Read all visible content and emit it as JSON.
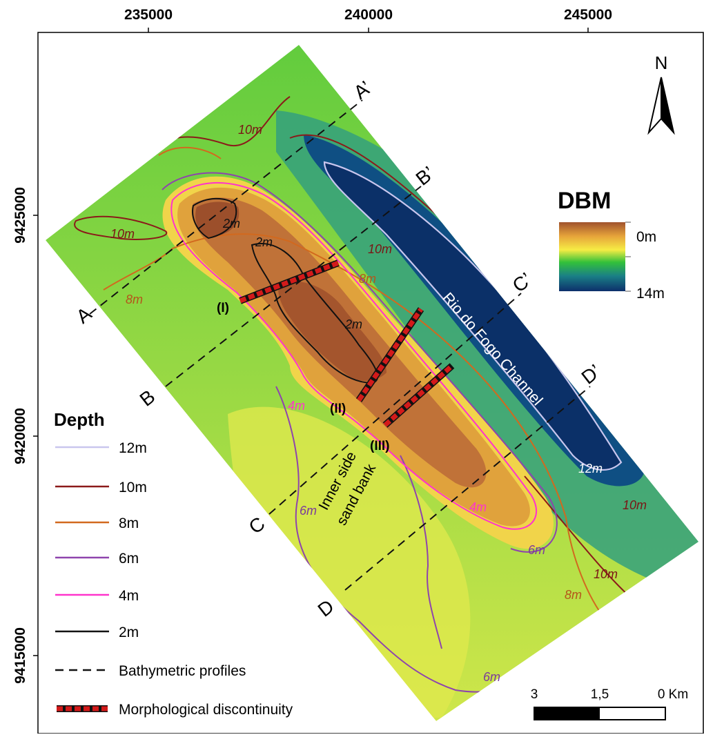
{
  "axes": {
    "x_ticks": [
      "235000",
      "240000",
      "245000"
    ],
    "y_ticks": [
      "9425000",
      "9420000",
      "9415000"
    ]
  },
  "north_arrow": {
    "label": "N",
    "icon": "north-arrow-icon"
  },
  "dbm_legend": {
    "title": "DBM",
    "min_label": "0m",
    "max_label": "14m",
    "colors": [
      "#a0522d",
      "#d99a3a",
      "#f5e93f",
      "#2fbf3a",
      "#1a7a8a",
      "#0d2f6b"
    ]
  },
  "depth_legend": {
    "title": "Depth",
    "items": [
      {
        "label": "12m",
        "color": "#c9c6ee"
      },
      {
        "label": "10m",
        "color": "#8b1a1a"
      },
      {
        "label": "8m",
        "color": "#d2691e"
      },
      {
        "label": "6m",
        "color": "#8e44ad"
      },
      {
        "label": "4m",
        "color": "#ff33cc"
      },
      {
        "label": "2m",
        "color": "#111111"
      }
    ],
    "profiles_label": "Bathymetric profiles",
    "discontinuity_label": "Morphological discontinuity",
    "discontinuity_color": "#d31a1a"
  },
  "scale_bar": {
    "labels": [
      "3",
      "1,5",
      "0 Km"
    ]
  },
  "profiles": [
    {
      "start": "A",
      "end": "A’"
    },
    {
      "start": "B",
      "end": "B’"
    },
    {
      "start": "C",
      "end": "C’"
    },
    {
      "start": "D",
      "end": "D’"
    }
  ],
  "discontinuities": [
    "(I)",
    "(II)",
    "(III)"
  ],
  "annotations": {
    "channel": "Rio do Fogo Channel",
    "sandbank_line1": "Inner side",
    "sandbank_line2": "sand bank"
  },
  "contour_labels": {
    "m10_a": "10m",
    "m10_b": "10m",
    "m10_c": "10m",
    "m10_d": "10m",
    "m10_e": "10m",
    "m8_a": "8m",
    "m8_b": "8m",
    "m8_c": "8m",
    "m2_a": "2m",
    "m2_b": "2m",
    "m2_c": "2m",
    "m4_a": "4m",
    "m4_b": "4m",
    "m6_a": "6m",
    "m6_b": "6m",
    "m6_c": "6m",
    "m12": "12m"
  }
}
